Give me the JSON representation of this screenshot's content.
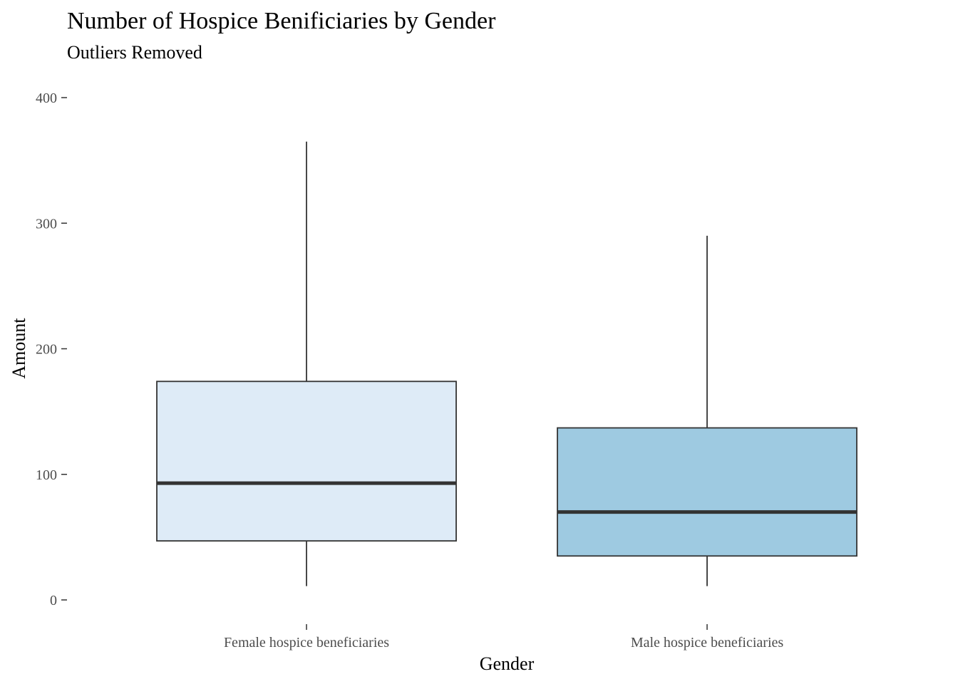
{
  "chart_data": {
    "type": "boxplot",
    "title": "Number of Hospice Benificiaries by Gender",
    "subtitle": "Outliers Removed",
    "xlabel": "Gender",
    "ylabel": "Amount",
    "ylim": [
      -18,
      410
    ],
    "yticks": [
      0,
      100,
      200,
      300,
      400
    ],
    "grid": false,
    "categories": [
      "Female hospice beneficiaries",
      "Male hospice beneficiaries"
    ],
    "boxes": [
      {
        "category": "Female hospice beneficiaries",
        "whisker_low": 11,
        "q1": 47,
        "median": 93,
        "q3": 174,
        "whisker_high": 365,
        "fill": "#deebf7"
      },
      {
        "category": "Male hospice beneficiaries",
        "whisker_low": 11,
        "q1": 35,
        "median": 70,
        "q3": 137,
        "whisker_high": 290,
        "fill": "#9ecae1"
      }
    ],
    "colors": {
      "box_stroke": "#333333",
      "tick": "#333333"
    }
  }
}
